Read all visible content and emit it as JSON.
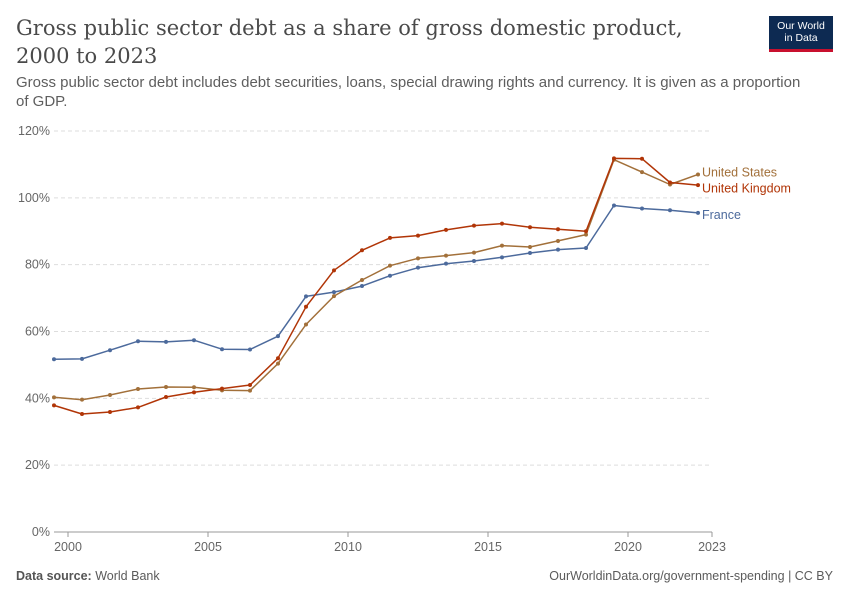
{
  "header": {
    "title": "Gross public sector debt as a share of gross domestic product, 2000 to 2023",
    "subtitle": "Gross public sector debt includes debt securities, loans, special drawing rights and currency. It is given as a proportion of GDP."
  },
  "logo": {
    "line1": "Our World",
    "line2": "in Data"
  },
  "footer": {
    "source_label": "Data source:",
    "source_value": "World Bank",
    "url": "OurWorldinData.org/government-spending | CC BY"
  },
  "colors": {
    "France": "#4c6a9c",
    "United States": "#a2703a",
    "United Kingdom": "#b13507",
    "grid": "#dddddd",
    "axis": "#666666"
  },
  "chart_data": {
    "type": "line",
    "title": "Gross public sector debt as a share of gross domestic product, 2000 to 2023",
    "xlabel": "",
    "ylabel": "",
    "x": [
      1999.5,
      2000.5,
      2001.5,
      2002.5,
      2003.5,
      2004.5,
      2005.5,
      2006.5,
      2007.5,
      2008.5,
      2009.5,
      2010.5,
      2011.5,
      2012.5,
      2013.5,
      2014.5,
      2015.5,
      2016.5,
      2017.5,
      2018.5,
      2019.5,
      2020.5,
      2021.5,
      2022.5
    ],
    "xlim": [
      1999.5,
      2023
    ],
    "ylim": [
      0,
      120
    ],
    "x_ticks": [
      2000,
      2005,
      2010,
      2015,
      2020,
      2023
    ],
    "y_ticks": [
      0,
      20,
      40,
      60,
      80,
      100,
      120
    ],
    "y_tick_labels": [
      "0%",
      "20%",
      "40%",
      "60%",
      "80%",
      "100%",
      "120%"
    ],
    "grid": "horizontal dashed",
    "legend": "inline at line ends (right)",
    "series": [
      {
        "name": "France",
        "values": [
          51.7,
          51.8,
          54.4,
          57.1,
          56.9,
          57.4,
          54.7,
          54.6,
          58.6,
          70.5,
          71.8,
          73.6,
          76.7,
          79.1,
          80.3,
          81.1,
          82.2,
          83.5,
          84.5,
          85.0,
          97.7,
          96.8,
          96.3,
          95.5
        ]
      },
      {
        "name": "United States",
        "values": [
          40.3,
          39.6,
          41.0,
          42.8,
          43.4,
          43.3,
          42.4,
          42.3,
          50.4,
          62.1,
          70.6,
          75.4,
          79.7,
          81.9,
          82.7,
          83.6,
          85.7,
          85.3,
          87.1,
          89.0,
          111.4,
          107.7,
          104.0,
          107.0
        ]
      },
      {
        "name": "United Kingdom",
        "values": [
          37.9,
          35.3,
          35.9,
          37.3,
          40.4,
          41.8,
          42.9,
          44.0,
          52.0,
          67.4,
          78.3,
          84.3,
          88.0,
          88.7,
          90.4,
          91.7,
          92.3,
          91.2,
          90.6,
          90.0,
          111.8,
          111.7,
          104.6,
          103.8
        ]
      }
    ]
  }
}
